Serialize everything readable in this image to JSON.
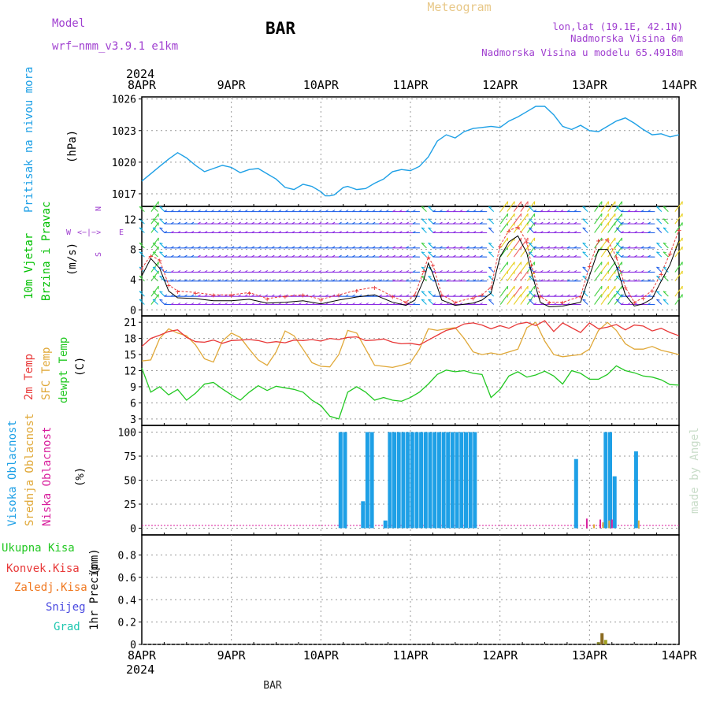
{
  "header": {
    "model_label": "Model",
    "model_name": "wrf−nmm_v3.9.1  e1km",
    "station": "BAR",
    "title": "Meteogram",
    "lonlat": "lon,lat (19.1E, 42.1N)",
    "altitude": "Nadmorska Visina 6m",
    "model_altitude": "Nadmorska Visina u modelu 65.4918m",
    "watermark": "made by Angel",
    "footer_station": "BAR",
    "year": "2024"
  },
  "colors": {
    "pressure": "#1ea0e6",
    "wind_label": "#00c000",
    "temp_2m": "#e83838",
    "temp_sfc": "#e0a838",
    "dewpoint": "#22c822",
    "cloud_high": "#1ea0e6",
    "cloud_mid": "#e0a838",
    "cloud_low": "#d81e9c",
    "purple_text": "#a040d0",
    "wind_speed": "#000000",
    "gust": "#e83838"
  },
  "chart_data": [
    {
      "type": "line",
      "id": "pressure",
      "ylabel": "Pritisak na nivou mora",
      "unit": "(hPa)",
      "x_labels": [
        "8APR",
        "9APR",
        "10APR",
        "11APR",
        "12APR",
        "13APR",
        "14APR"
      ],
      "yticks": [
        1017,
        1020,
        1023,
        1026
      ],
      "ylim": [
        1015.8,
        1026.2
      ],
      "x": [
        0,
        0.1,
        0.2,
        0.3,
        0.4,
        0.5,
        0.6,
        0.7,
        0.8,
        0.9,
        1.0,
        1.1,
        1.2,
        1.3,
        1.4,
        1.5,
        1.6,
        1.7,
        1.8,
        1.9,
        2.0,
        2.05,
        2.1,
        2.15,
        2.25,
        2.3,
        2.4,
        2.5,
        2.6,
        2.7,
        2.8,
        2.9,
        3.0,
        3.1,
        3.2,
        3.3,
        3.4,
        3.5,
        3.6,
        3.7,
        3.8,
        3.9,
        4.0,
        4.1,
        4.2,
        4.3,
        4.4,
        4.5,
        4.6,
        4.7,
        4.8,
        4.9,
        5.0,
        5.1,
        5.2,
        5.3,
        5.4,
        5.5,
        5.6,
        5.7,
        5.8,
        5.9,
        6.0
      ],
      "series": [
        {
          "values": [
            1018.2,
            1018.9,
            1019.6,
            1020.3,
            1020.9,
            1020.4,
            1019.7,
            1019.1,
            1019.4,
            1019.7,
            1019.5,
            1019.0,
            1019.3,
            1019.4,
            1018.9,
            1018.4,
            1017.6,
            1017.4,
            1017.9,
            1017.7,
            1017.2,
            1016.8,
            1016.8,
            1016.9,
            1017.6,
            1017.7,
            1017.4,
            1017.5,
            1018.0,
            1018.4,
            1019.1,
            1019.3,
            1019.2,
            1019.6,
            1020.5,
            1022.0,
            1022.6,
            1022.3,
            1022.9,
            1023.2,
            1023.3,
            1023.4,
            1023.3,
            1023.9,
            1024.3,
            1024.8,
            1025.3,
            1025.3,
            1024.5,
            1023.4,
            1023.1,
            1023.5,
            1023.0,
            1022.9,
            1023.4,
            1023.9,
            1024.2,
            1023.7,
            1023.1,
            1022.6,
            1022.7,
            1022.4,
            1022.6
          ]
        }
      ]
    },
    {
      "type": "line",
      "id": "wind",
      "ylabel_line1": "10m Vjetar",
      "ylabel_line2": "Brzina i Pravac",
      "unit": "(m/s)",
      "compass": {
        "n": "N",
        "s": "S",
        "e": "E",
        "w": "W"
      },
      "yticks": [
        0,
        4,
        8,
        12
      ],
      "ylim": [
        -0.8,
        13.7
      ],
      "x": [
        0,
        0.1,
        0.2,
        0.3,
        0.4,
        0.6,
        0.8,
        1.0,
        1.2,
        1.4,
        1.6,
        1.8,
        2.0,
        2.2,
        2.4,
        2.6,
        2.8,
        2.95,
        3.05,
        3.15,
        3.2,
        3.25,
        3.35,
        3.5,
        3.7,
        3.8,
        3.9,
        4.0,
        4.1,
        4.2,
        4.3,
        4.35,
        4.45,
        4.55,
        4.7,
        4.9,
        5.0,
        5.1,
        5.2,
        5.3,
        5.4,
        5.5,
        5.6,
        5.7,
        5.8,
        5.9,
        6.0
      ],
      "series": [
        {
          "name": "speed",
          "values": [
            4.5,
            6.8,
            5.5,
            2.5,
            1.6,
            1.5,
            1.2,
            1.2,
            1.4,
            0.9,
            1.0,
            1.2,
            0.8,
            1.3,
            1.7,
            2.0,
            1.0,
            0.6,
            1.3,
            4.0,
            6.2,
            4.8,
            1.3,
            0.6,
            0.9,
            1.3,
            2.2,
            7.0,
            9.0,
            9.8,
            7.5,
            5.0,
            1.0,
            0.4,
            0.5,
            1.0,
            4.5,
            8.0,
            8.0,
            5.8,
            2.0,
            0.5,
            0.8,
            1.5,
            3.8,
            6.0,
            9.2
          ]
        },
        {
          "name": "gust",
          "values": [
            5.5,
            7.2,
            6.6,
            3.3,
            2.5,
            2.3,
            2.0,
            2.0,
            2.3,
            1.5,
            1.8,
            2.0,
            1.4,
            2.0,
            2.6,
            3.0,
            1.8,
            1.0,
            2.0,
            5.2,
            7.0,
            6.0,
            2.0,
            1.0,
            1.6,
            2.0,
            3.0,
            8.5,
            10.5,
            11.0,
            9.0,
            6.0,
            1.8,
            1.0,
            1.0,
            1.8,
            5.8,
            9.2,
            9.3,
            7.0,
            3.0,
            1.0,
            1.6,
            2.6,
            4.8,
            7.5,
            10.6
          ]
        }
      ]
    },
    {
      "type": "line",
      "id": "temperature",
      "ylabel_2m": "2m Temp",
      "ylabel_sfc": "SFC Temp",
      "ylabel_dew": "dewpt Temp",
      "unit": "(C)",
      "yticks": [
        3,
        6,
        9,
        12,
        15,
        18,
        21
      ],
      "ylim": [
        1.8,
        22.2
      ],
      "x": [
        0,
        0.1,
        0.2,
        0.3,
        0.4,
        0.5,
        0.6,
        0.7,
        0.8,
        0.9,
        1.0,
        1.1,
        1.2,
        1.3,
        1.4,
        1.5,
        1.6,
        1.7,
        1.8,
        1.9,
        2.0,
        2.1,
        2.2,
        2.3,
        2.4,
        2.5,
        2.6,
        2.7,
        2.8,
        2.9,
        3.0,
        3.1,
        3.2,
        3.3,
        3.4,
        3.5,
        3.6,
        3.7,
        3.8,
        3.9,
        4.0,
        4.1,
        4.2,
        4.3,
        4.4,
        4.5,
        4.6,
        4.7,
        4.8,
        4.9,
        5.0,
        5.1,
        5.2,
        5.3,
        5.4,
        5.5,
        5.6,
        5.7,
        5.8,
        5.9,
        6.0
      ],
      "series": [
        {
          "name": "2m",
          "values": [
            16.5,
            18.0,
            18.6,
            19.3,
            19.6,
            18.2,
            17.4,
            17.3,
            17.7,
            17.1,
            17.6,
            17.7,
            17.8,
            17.6,
            17.2,
            17.4,
            17.2,
            17.7,
            17.6,
            17.8,
            17.5,
            18.0,
            17.8,
            18.2,
            18.3,
            17.6,
            17.7,
            17.9,
            17.3,
            17.0,
            17.1,
            16.8,
            17.7,
            18.6,
            19.5,
            19.9,
            20.7,
            20.9,
            20.5,
            19.8,
            20.4,
            19.9,
            20.7,
            21.0,
            20.4,
            21.3,
            19.3,
            20.9,
            20.0,
            19.1,
            20.9,
            19.8,
            20.1,
            20.6,
            19.6,
            20.5,
            20.3,
            19.4,
            19.9,
            19.1,
            18.5
          ]
        },
        {
          "name": "sfc",
          "values": [
            13.8,
            14.0,
            18.0,
            19.8,
            19.0,
            18.5,
            16.8,
            14.2,
            13.6,
            17.5,
            19.0,
            18.2,
            16.0,
            14.0,
            13.0,
            15.5,
            19.4,
            18.5,
            16.0,
            13.5,
            12.8,
            12.7,
            15.0,
            19.5,
            19.0,
            16.0,
            13.0,
            12.8,
            12.6,
            13.0,
            13.5,
            16.0,
            19.8,
            19.5,
            19.8,
            20.0,
            18.0,
            15.5,
            15.0,
            15.3,
            15.0,
            15.5,
            16.0,
            20.0,
            21.0,
            17.5,
            15.0,
            14.6,
            14.8,
            15.0,
            16.0,
            19.5,
            21.0,
            19.5,
            17.0,
            16.0,
            16.0,
            16.5,
            15.8,
            15.4,
            15.0
          ]
        },
        {
          "name": "dewpoint",
          "values": [
            12.5,
            8.0,
            9.0,
            7.5,
            8.5,
            6.5,
            7.8,
            9.5,
            9.8,
            8.6,
            7.5,
            6.5,
            8.0,
            9.2,
            8.3,
            9.1,
            8.8,
            8.5,
            8.0,
            6.5,
            5.5,
            3.5,
            3.0,
            8.0,
            9.0,
            8.0,
            6.5,
            7.0,
            6.5,
            6.3,
            7.0,
            8.0,
            9.5,
            11.3,
            12.1,
            11.8,
            12.0,
            11.5,
            11.3,
            7.0,
            8.5,
            11.0,
            11.8,
            10.8,
            11.2,
            11.9,
            11.0,
            9.5,
            12.0,
            11.5,
            10.4,
            10.4,
            11.3,
            12.9,
            12.0,
            11.6,
            11.0,
            10.8,
            10.3,
            9.4,
            9.3
          ]
        }
      ]
    },
    {
      "type": "bar",
      "id": "cloud",
      "ylabel_high": "Visoka Oblacnost",
      "ylabel_mid": "Srednja Oblacnost",
      "ylabel_low": "Niska Oblacnost",
      "unit": "(%)",
      "yticks": [
        0,
        25,
        50,
        75,
        100
      ],
      "ylim": [
        -7,
        107
      ],
      "series": [
        {
          "name": "high",
          "x": [
            2.22,
            2.27,
            2.47,
            2.52,
            2.57,
            2.72,
            2.77,
            2.82,
            2.87,
            2.92,
            2.97,
            3.02,
            3.07,
            3.12,
            3.17,
            3.22,
            3.27,
            3.32,
            3.37,
            3.42,
            3.47,
            3.52,
            3.57,
            3.62,
            3.67,
            3.72,
            4.85,
            5.18,
            5.23,
            5.28,
            5.52
          ],
          "values": [
            100,
            100,
            28,
            100,
            100,
            8,
            100,
            100,
            100,
            100,
            100,
            100,
            100,
            100,
            100,
            100,
            100,
            100,
            100,
            100,
            100,
            100,
            100,
            100,
            100,
            100,
            72,
            100,
            100,
            54,
            80
          ]
        },
        {
          "name": "mid",
          "x": [
            5.05,
            5.15,
            5.22,
            5.55
          ],
          "values": [
            4,
            6,
            8,
            8
          ]
        },
        {
          "name": "low",
          "x": [
            4.97,
            5.12,
            5.25
          ],
          "values": [
            10,
            9,
            9
          ]
        }
      ]
    },
    {
      "type": "bar",
      "id": "precip",
      "ylabel": "1hr Precip",
      "unit": "(mm)",
      "legend": [
        "Ukupna Kisa",
        "Konvek.Kisa",
        "Zaledj.Kisa",
        "Snijeg",
        "Grad"
      ],
      "legend_colors": [
        "#22c822",
        "#e83838",
        "#f07820",
        "#4848e0",
        "#20c8b0"
      ],
      "yticks": [
        0,
        0.2,
        0.4,
        0.6,
        0.8
      ],
      "ylim": [
        0,
        0.98
      ],
      "series": [
        {
          "name": "total",
          "x": [
            5.1,
            5.14,
            5.18
          ],
          "values": [
            0.02,
            0.1,
            0.04
          ]
        }
      ]
    }
  ],
  "x_axis": {
    "days": 6,
    "labels": [
      "8APR",
      "9APR",
      "10APR",
      "11APR",
      "12APR",
      "13APR",
      "14APR"
    ]
  }
}
